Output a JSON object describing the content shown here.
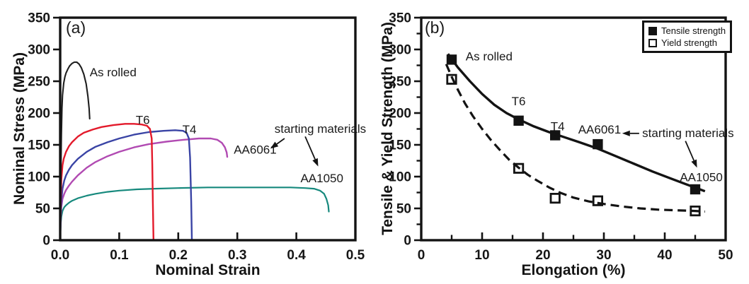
{
  "figure": {
    "background": "#ffffff",
    "ink": "#131313"
  },
  "chart_data": [
    {
      "panel_label": "(a)",
      "type": "line",
      "xlabel": "Nominal Strain",
      "ylabel": "Nominal Stress (MPa)",
      "xlim": [
        0,
        0.5
      ],
      "ylim": [
        0,
        350
      ],
      "x_ticks": {
        "values": [
          0,
          0.1,
          0.2,
          0.3,
          0.4,
          0.5
        ],
        "labels": [
          "0.0",
          "0.1",
          "0.2",
          "0.3",
          "0.4",
          "0.5"
        ]
      },
      "y_ticks": {
        "values": [
          0,
          50,
          100,
          150,
          200,
          250,
          300,
          350
        ],
        "labels": [
          "0",
          "50",
          "100",
          "150",
          "200",
          "250",
          "300",
          "350"
        ]
      },
      "x_minor_ticks": [],
      "y_minor_ticks": [],
      "grid": false,
      "series": [
        {
          "name": "As rolled",
          "color": "#1f1f1f",
          "width": 2.1,
          "points": [
            [
              0,
              0
            ],
            [
              0.001,
              90
            ],
            [
              0.002,
              165
            ],
            [
              0.003,
              207
            ],
            [
              0.004,
              228
            ],
            [
              0.006,
              247
            ],
            [
              0.008,
              257
            ],
            [
              0.01,
              263
            ],
            [
              0.013,
              269
            ],
            [
              0.016,
              274
            ],
            [
              0.02,
              278
            ],
            [
              0.024,
              280
            ],
            [
              0.028,
              280
            ],
            [
              0.032,
              277
            ],
            [
              0.036,
              271
            ],
            [
              0.04,
              261
            ],
            [
              0.044,
              246
            ],
            [
              0.047,
              226
            ],
            [
              0.049,
              207
            ],
            [
              0.05,
              191
            ]
          ]
        },
        {
          "name": "T6",
          "color": "#e31a2b",
          "width": 2.4,
          "points": [
            [
              0,
              0
            ],
            [
              0.001,
              62
            ],
            [
              0.002,
              96
            ],
            [
              0.004,
              118
            ],
            [
              0.006,
              128
            ],
            [
              0.01,
              139
            ],
            [
              0.015,
              148
            ],
            [
              0.02,
              154
            ],
            [
              0.03,
              163
            ],
            [
              0.04,
              169
            ],
            [
              0.055,
              174
            ],
            [
              0.07,
              178
            ],
            [
              0.09,
              181
            ],
            [
              0.11,
              183
            ],
            [
              0.125,
              183
            ],
            [
              0.138,
              182
            ],
            [
              0.147,
              180
            ],
            [
              0.152,
              175
            ],
            [
              0.155,
              160
            ],
            [
              0.156,
              120
            ],
            [
              0.157,
              60
            ],
            [
              0.158,
              2
            ]
          ]
        },
        {
          "name": "T4",
          "color": "#3a44a5",
          "width": 2.4,
          "points": [
            [
              0,
              0
            ],
            [
              0.001,
              42
            ],
            [
              0.002,
              63
            ],
            [
              0.004,
              81
            ],
            [
              0.007,
              94
            ],
            [
              0.01,
              102
            ],
            [
              0.015,
              111
            ],
            [
              0.02,
              118
            ],
            [
              0.03,
              128
            ],
            [
              0.045,
              139
            ],
            [
              0.06,
              147
            ],
            [
              0.08,
              154
            ],
            [
              0.1,
              160
            ],
            [
              0.125,
              166
            ],
            [
              0.15,
              170
            ],
            [
              0.175,
              172
            ],
            [
              0.195,
              173
            ],
            [
              0.208,
              172
            ],
            [
              0.214,
              169
            ],
            [
              0.218,
              160
            ],
            [
              0.22,
              130
            ],
            [
              0.222,
              60
            ],
            [
              0.223,
              2
            ]
          ]
        },
        {
          "name": "AA6061",
          "color": "#b14ab2",
          "width": 2.4,
          "points": [
            [
              0,
              0
            ],
            [
              0.001,
              36
            ],
            [
              0.002,
              53
            ],
            [
              0.004,
              65
            ],
            [
              0.007,
              73
            ],
            [
              0.01,
              79
            ],
            [
              0.015,
              86
            ],
            [
              0.02,
              92
            ],
            [
              0.03,
              102
            ],
            [
              0.045,
              114
            ],
            [
              0.06,
              123
            ],
            [
              0.08,
              132
            ],
            [
              0.1,
              139
            ],
            [
              0.125,
              146
            ],
            [
              0.15,
              151
            ],
            [
              0.18,
              155
            ],
            [
              0.21,
              158
            ],
            [
              0.235,
              160
            ],
            [
              0.255,
              160
            ],
            [
              0.266,
              158
            ],
            [
              0.274,
              153
            ],
            [
              0.279,
              146
            ],
            [
              0.282,
              138
            ],
            [
              0.283,
              131
            ]
          ]
        },
        {
          "name": "AA1050",
          "color": "#16897d",
          "width": 2.2,
          "points": [
            [
              0,
              0
            ],
            [
              0.001,
              26
            ],
            [
              0.002,
              37
            ],
            [
              0.004,
              46
            ],
            [
              0.007,
              52
            ],
            [
              0.01,
              55
            ],
            [
              0.015,
              59
            ],
            [
              0.02,
              62
            ],
            [
              0.03,
              66
            ],
            [
              0.045,
              70
            ],
            [
              0.06,
              73
            ],
            [
              0.08,
              76
            ],
            [
              0.1,
              78
            ],
            [
              0.13,
              80
            ],
            [
              0.16,
              81
            ],
            [
              0.2,
              82
            ],
            [
              0.25,
              83
            ],
            [
              0.3,
              83
            ],
            [
              0.35,
              83
            ],
            [
              0.39,
              83
            ],
            [
              0.415,
              82
            ],
            [
              0.43,
              81
            ],
            [
              0.44,
              78
            ],
            [
              0.447,
              73
            ],
            [
              0.451,
              65
            ],
            [
              0.454,
              55
            ],
            [
              0.455,
              45
            ]
          ]
        }
      ],
      "annotations": [
        {
          "text": "As rolled",
          "x": 0.05,
          "y": 258,
          "anchor": "start"
        },
        {
          "text": "T6",
          "x": 0.128,
          "y": 183,
          "anchor": "start"
        },
        {
          "text": "T4",
          "x": 0.207,
          "y": 168,
          "anchor": "start"
        },
        {
          "text": "AA6061",
          "x": 0.294,
          "y": 136,
          "anchor": "start"
        },
        {
          "text": "AA1050",
          "x": 0.407,
          "y": 91,
          "anchor": "start"
        },
        {
          "text": "starting materials",
          "x": 0.363,
          "y": 169,
          "anchor": "start"
        }
      ],
      "arrows": [
        {
          "from": [
            0.38,
            160
          ],
          "to": [
            0.356,
            144
          ]
        },
        {
          "from": [
            0.415,
            163
          ],
          "to": [
            0.437,
            116
          ]
        }
      ]
    },
    {
      "panel_label": "(b)",
      "type": "scatter",
      "xlabel": "Elongation (%)",
      "ylabel": "Tensile & Yield Strength (MPa)",
      "xlim": [
        0,
        50
      ],
      "ylim": [
        0,
        350
      ],
      "x_ticks": {
        "values": [
          0,
          10,
          20,
          30,
          40,
          50
        ],
        "labels": [
          "0",
          "10",
          "20",
          "30",
          "40",
          "50"
        ]
      },
      "y_ticks": {
        "values": [
          0,
          50,
          100,
          150,
          200,
          250,
          300,
          350
        ],
        "labels": [
          "0",
          "50",
          "100",
          "150",
          "200",
          "250",
          "300",
          "350"
        ]
      },
      "x_minor_ticks": [
        5,
        15,
        25,
        35,
        45
      ],
      "y_minor_ticks": [
        25,
        75,
        125,
        175,
        225,
        275,
        325
      ],
      "grid": false,
      "categories": [
        "As rolled",
        "T6",
        "T4",
        "AA6061",
        "AA1050"
      ],
      "series": [
        {
          "name": "Tensile strength",
          "marker": "filled-square",
          "points": [
            [
              5,
              284
            ],
            [
              16,
              188
            ],
            [
              22,
              165
            ],
            [
              29,
              151
            ],
            [
              45,
              80
            ]
          ]
        },
        {
          "name": "Yield strength",
          "marker": "open-square",
          "points": [
            [
              5,
              253
            ],
            [
              16,
              113
            ],
            [
              22,
              66
            ],
            [
              29,
              62
            ],
            [
              45,
              46
            ]
          ]
        }
      ],
      "fit_lines": [
        {
          "for": "Tensile strength",
          "style": "solid",
          "points": [
            [
              4.4,
              293
            ],
            [
              6,
              272
            ],
            [
              8,
              250
            ],
            [
              10,
              230
            ],
            [
              12,
              213
            ],
            [
              14,
              200
            ],
            [
              16,
              190
            ],
            [
              18.5,
              179
            ],
            [
              21,
              170
            ],
            [
              23.5,
              162
            ],
            [
              26,
              154
            ],
            [
              29,
              144
            ],
            [
              32,
              132
            ],
            [
              35,
              120
            ],
            [
              38,
              108
            ],
            [
              41,
              97
            ],
            [
              43.5,
              88
            ],
            [
              45.2,
              82
            ],
            [
              46.6,
              77
            ]
          ]
        },
        {
          "for": "Yield strength",
          "style": "dashed",
          "points": [
            [
              4.1,
              277
            ],
            [
              5,
              257
            ],
            [
              6,
              237
            ],
            [
              7.2,
              215
            ],
            [
              8.5,
              195
            ],
            [
              10,
              175
            ],
            [
              11.5,
              157
            ],
            [
              13,
              141
            ],
            [
              14.5,
              126
            ],
            [
              16,
              114
            ],
            [
              17.5,
              103
            ],
            [
              19,
              94
            ],
            [
              21,
              83
            ],
            [
              23,
              74
            ],
            [
              25,
              67
            ],
            [
              27.5,
              61
            ],
            [
              30,
              57
            ],
            [
              33,
              53
            ],
            [
              36,
              50
            ],
            [
              39,
              48
            ],
            [
              42,
              47
            ],
            [
              45,
              46
            ],
            [
              46.6,
              45
            ]
          ]
        }
      ],
      "legend": {
        "position": "top-right",
        "entries": [
          {
            "label": "Tensile strength",
            "marker": "filled-square"
          },
          {
            "label": "Yield strength",
            "marker": "open-square"
          }
        ]
      },
      "annotations": [
        {
          "text": "As rolled",
          "x": 7.3,
          "y": 283,
          "anchor": "start"
        },
        {
          "text": "T6",
          "x": 16,
          "y": 212,
          "anchor": "middle"
        },
        {
          "text": "T4",
          "x": 22.4,
          "y": 173,
          "anchor": "middle"
        },
        {
          "text": "AA6061",
          "x": 29.3,
          "y": 168,
          "anchor": "middle"
        },
        {
          "text": "AA1050",
          "x": 46,
          "y": 93,
          "anchor": "middle"
        },
        {
          "text": "starting materials",
          "x": 36.3,
          "y": 162,
          "anchor": "start"
        }
      ],
      "arrows": [
        {
          "from": [
            35.8,
            168
          ],
          "to": [
            33.0,
            168
          ]
        },
        {
          "from": [
            43.4,
            156
          ],
          "to": [
            45.3,
            114
          ]
        }
      ]
    }
  ]
}
